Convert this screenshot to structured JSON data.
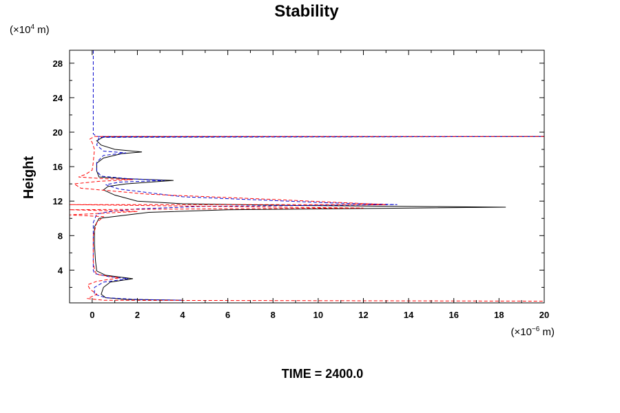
{
  "chart_data": {
    "type": "line",
    "title": "Stability",
    "ylabel": "Height",
    "xlabel": "",
    "x_unit_prefix": "(×10",
    "x_unit_exp": "−6",
    "x_unit_suffix": " m)",
    "y_unit_prefix": "(×10",
    "y_unit_exp": "4",
    "y_unit_suffix": " m)",
    "footer": "TIME = 2400.0",
    "xlim": [
      -1,
      20
    ],
    "ylim": [
      0.2,
      29.5
    ],
    "x_ticks": [
      0,
      2,
      4,
      6,
      8,
      10,
      12,
      14,
      16,
      18,
      20
    ],
    "x_tick_labels": [
      "0",
      "2",
      "4",
      "6",
      "8",
      "10",
      "12",
      "14",
      "16",
      "18",
      "20"
    ],
    "y_ticks": [
      4,
      8,
      12,
      16,
      20,
      24,
      28
    ],
    "y_tick_labels": [
      "4",
      "8",
      "12",
      "16",
      "20",
      "24",
      "28"
    ],
    "grid": false,
    "series": [
      {
        "style": "solid",
        "color": "#000000",
        "points": [
          [
            4.0,
            0.5
          ],
          [
            1.5,
            0.6
          ],
          [
            0.6,
            0.8
          ],
          [
            0.4,
            1.2
          ],
          [
            0.5,
            2.0
          ],
          [
            0.8,
            2.6
          ],
          [
            1.8,
            3.0
          ],
          [
            0.6,
            3.4
          ],
          [
            0.2,
            3.9
          ],
          [
            0.15,
            5.0
          ],
          [
            0.1,
            7.0
          ],
          [
            0.1,
            9.0
          ],
          [
            0.3,
            10.0
          ],
          [
            2.5,
            10.7
          ],
          [
            6,
            11.0
          ],
          [
            18.3,
            11.3
          ],
          [
            9,
            11.5
          ],
          [
            4,
            11.7
          ],
          [
            2,
            12.0
          ],
          [
            1,
            12.7
          ],
          [
            0.5,
            13.3
          ],
          [
            0.7,
            13.7
          ],
          [
            1.5,
            14.0
          ],
          [
            3.6,
            14.4
          ],
          [
            1.5,
            14.6
          ],
          [
            0.3,
            14.8
          ],
          [
            0.2,
            15.5
          ],
          [
            0.2,
            16.4
          ],
          [
            0.5,
            17.0
          ],
          [
            1.3,
            17.5
          ],
          [
            2.2,
            17.7
          ],
          [
            1.0,
            18.0
          ],
          [
            0.4,
            18.5
          ],
          [
            0.2,
            19.0
          ],
          [
            0.5,
            19.45
          ],
          [
            20,
            19.5
          ]
        ]
      },
      {
        "style": "dashed",
        "color": "#0000cc",
        "points": [
          [
            0.05,
            29.5
          ],
          [
            0.05,
            22.0
          ],
          [
            0.05,
            19.8
          ],
          [
            0.2,
            19.5
          ],
          [
            20,
            19.5
          ],
          [
            0.3,
            19.4
          ],
          [
            0.2,
            18.5
          ],
          [
            0.5,
            17.8
          ],
          [
            1.5,
            17.6
          ],
          [
            0.5,
            17.3
          ],
          [
            0.2,
            16.5
          ],
          [
            0.2,
            15.5
          ],
          [
            0.4,
            14.9
          ],
          [
            1.6,
            14.6
          ],
          [
            3.2,
            14.4
          ],
          [
            1.2,
            14.2
          ],
          [
            0.6,
            13.9
          ],
          [
            1.2,
            13.4
          ],
          [
            4,
            12.5
          ],
          [
            10.5,
            11.8
          ],
          [
            13.5,
            11.6
          ],
          [
            5,
            11.4
          ],
          [
            2,
            11.1
          ],
          [
            0.8,
            10.8
          ],
          [
            0.2,
            10.5
          ],
          [
            0.05,
            9.5
          ],
          [
            0.05,
            6.0
          ],
          [
            0.05,
            4.0
          ],
          [
            0.1,
            3.6
          ],
          [
            0.8,
            3.2
          ],
          [
            1.6,
            3.0
          ],
          [
            0.5,
            2.6
          ],
          [
            0.1,
            2.0
          ],
          [
            0.1,
            1.2
          ],
          [
            0.6,
            0.8
          ],
          [
            2.0,
            0.6
          ],
          [
            4.0,
            0.5
          ]
        ]
      },
      {
        "style": "dashed",
        "color": "#ff0000",
        "points": [
          [
            20,
            19.5
          ],
          [
            0.1,
            19.5
          ],
          [
            -0.1,
            19.2
          ],
          [
            0.0,
            18.8
          ],
          [
            0.1,
            18.0
          ],
          [
            0.05,
            16.5
          ],
          [
            0.0,
            15.6
          ],
          [
            -0.3,
            15.1
          ],
          [
            -0.6,
            14.8
          ],
          [
            0.5,
            14.6
          ],
          [
            1.8,
            14.5
          ],
          [
            0.3,
            14.3
          ],
          [
            -0.8,
            14.0
          ],
          [
            -0.5,
            13.5
          ],
          [
            0.8,
            13.2
          ],
          [
            2.5,
            12.8
          ],
          [
            8,
            12.2
          ],
          [
            10.5,
            11.9
          ],
          [
            13,
            11.6
          ],
          [
            -1,
            11.6
          ],
          [
            5,
            11.4
          ],
          [
            12,
            11.2
          ],
          [
            -1,
            11.0
          ],
          [
            2,
            10.8
          ],
          [
            -1,
            10.4
          ],
          [
            0.5,
            10.2
          ],
          [
            0.2,
            9.5
          ],
          [
            0.05,
            8.0
          ],
          [
            0.05,
            5.0
          ],
          [
            0.1,
            4.0
          ],
          [
            0.2,
            3.5
          ],
          [
            1.2,
            3.1
          ],
          [
            0.2,
            2.7
          ],
          [
            -0.2,
            2.3
          ],
          [
            -0.1,
            1.8
          ],
          [
            0.2,
            1.2
          ],
          [
            -0.2,
            0.7
          ],
          [
            0.5,
            0.5
          ],
          [
            20,
            0.4
          ]
        ]
      }
    ]
  }
}
